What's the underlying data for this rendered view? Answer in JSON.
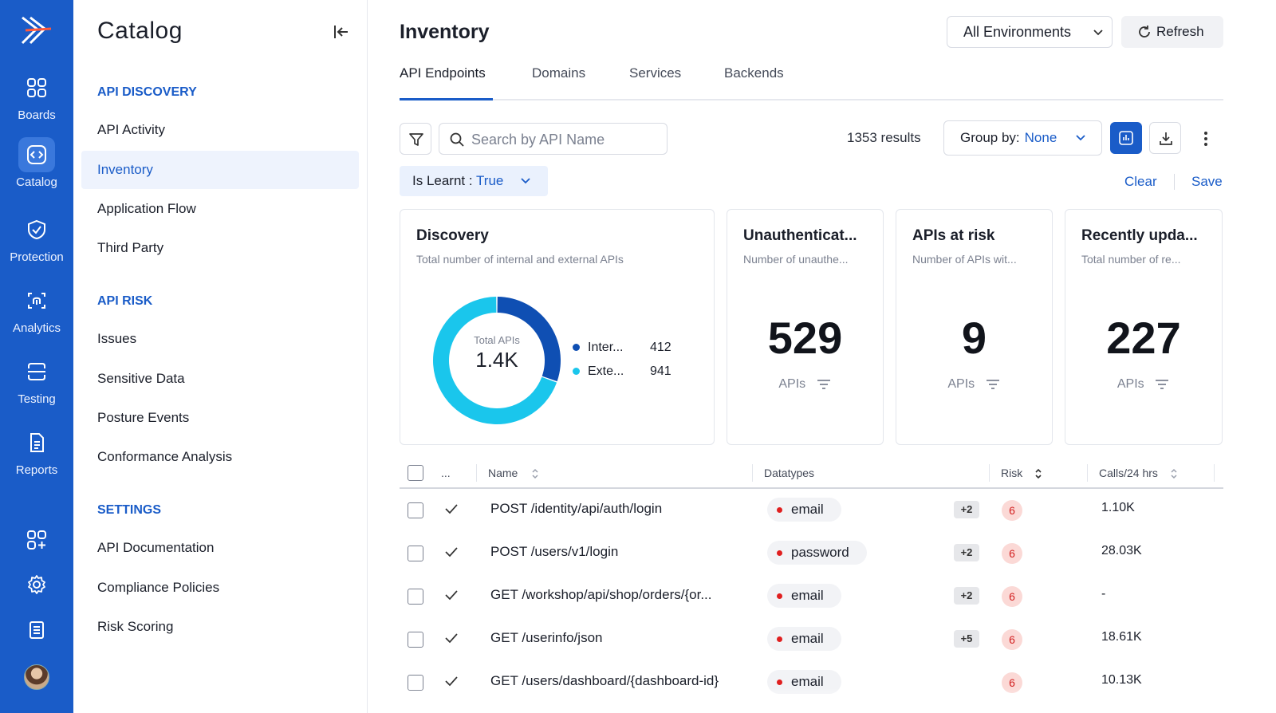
{
  "rail": {
    "items": [
      {
        "label": "Boards",
        "icon": "grid-icon"
      },
      {
        "label": "Catalog",
        "icon": "code-square-icon",
        "active": true
      },
      {
        "label": "Protection",
        "icon": "shield-check-icon"
      },
      {
        "label": "Analytics",
        "icon": "fingerprint-icon"
      },
      {
        "label": "Testing",
        "icon": "scan-icon"
      },
      {
        "label": "Reports",
        "icon": "document-icon"
      }
    ],
    "accent": "#1a5cc8"
  },
  "catalog": {
    "title": "Catalog",
    "sections": [
      {
        "heading": "API DISCOVERY",
        "items": [
          "API Activity",
          "Inventory",
          "Application Flow",
          "Third Party"
        ]
      },
      {
        "heading": "API RISK",
        "items": [
          "Issues",
          "Sensitive Data",
          "Posture Events",
          "Conformance Analysis"
        ]
      },
      {
        "heading": "SETTINGS",
        "items": [
          "API Documentation",
          "Compliance Policies",
          "Risk Scoring"
        ]
      }
    ],
    "active_item": "Inventory"
  },
  "header": {
    "title": "Inventory",
    "environment": "All Environments",
    "refresh_label": "Refresh"
  },
  "tabs": [
    "API Endpoints",
    "Domains",
    "Services",
    "Backends"
  ],
  "toolbar": {
    "search_placeholder": "Search by API Name",
    "results": "1353 results",
    "group_by_label": "Group by:",
    "group_by_value": "None"
  },
  "filter_chip": {
    "key": "Is Learnt :",
    "value": "True"
  },
  "filter_actions": {
    "clear": "Clear",
    "save": "Save"
  },
  "cards": {
    "discovery": {
      "title": "Discovery",
      "subtitle": "Total number of internal and external APIs",
      "center_label": "Total APIs",
      "center_value": "1.4K",
      "legend": [
        {
          "label": "Inter...",
          "value": "412",
          "color": "#0f4fb3"
        },
        {
          "label": "Exte...",
          "value": "941",
          "color": "#1ac6ec"
        }
      ]
    },
    "metrics": [
      {
        "title": "Unauthenticat...",
        "subtitle": "Number of unauthe...",
        "value": "529",
        "unit": "APIs"
      },
      {
        "title": "APIs at risk",
        "subtitle": "Number of APIs wit...",
        "value": "9",
        "unit": "APIs"
      },
      {
        "title": "Recently upda...",
        "subtitle": "Total number of re...",
        "value": "227",
        "unit": "APIs"
      }
    ]
  },
  "chart_data": {
    "type": "pie",
    "categories": [
      "Inter...",
      "Exte..."
    ],
    "values": [
      412,
      941
    ],
    "title": "Discovery"
  },
  "table": {
    "columns": {
      "dots": "...",
      "name": "Name",
      "datatypes": "Datatypes",
      "risk": "Risk",
      "calls": "Calls/24 hrs"
    },
    "rows": [
      {
        "name": "POST /identity/api/auth/login",
        "datatype": "email",
        "more": "+2",
        "risk": "6",
        "calls": "1.10K"
      },
      {
        "name": "POST /users/v1/login",
        "datatype": "password",
        "more": "+2",
        "risk": "6",
        "calls": "28.03K"
      },
      {
        "name": "GET /workshop/api/shop/orders/{or...",
        "datatype": "email",
        "more": "+2",
        "risk": "6",
        "calls": "-"
      },
      {
        "name": "GET /userinfo/json",
        "datatype": "email",
        "more": "+5",
        "risk": "6",
        "calls": "18.61K"
      },
      {
        "name": "GET /users/dashboard/{dashboard-id}",
        "datatype": "email",
        "more": "",
        "risk": "6",
        "calls": "10.13K"
      }
    ]
  }
}
